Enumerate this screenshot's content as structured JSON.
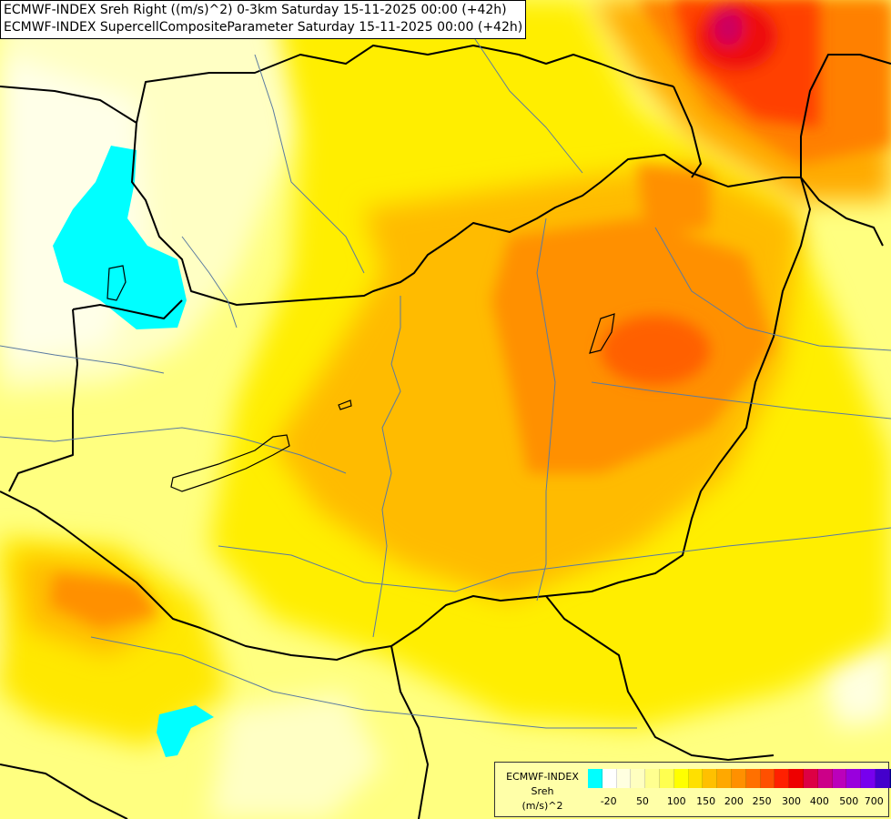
{
  "header": {
    "line1": "ECMWF-INDEX Sreh Right ((m/s)^2) 0-3km Saturday 15-11-2025 00:00 (+42h)",
    "line2": "ECMWF-INDEX SupercellCompositeParameter Saturday 15-11-2025 00:00 (+42h)"
  },
  "legend": {
    "model": "ECMWF-INDEX",
    "variable": "Sreh",
    "unit": "(m/s)^2",
    "colors": [
      "#00ffff",
      "#ffffff",
      "#ffffe0",
      "#ffffc0",
      "#ffff90",
      "#ffff50",
      "#ffff00",
      "#ffe000",
      "#ffc000",
      "#ffa800",
      "#ff9000",
      "#ff7000",
      "#ff5000",
      "#ff2000",
      "#ee0000",
      "#dd0044",
      "#cc0088",
      "#bb00bb",
      "#9900dd",
      "#7700ee",
      "#4400cc",
      "#000088"
    ],
    "ticks": [
      {
        "label": "-20",
        "pos": 0.07
      },
      {
        "label": "50",
        "pos": 0.185
      },
      {
        "label": "100",
        "pos": 0.3
      },
      {
        "label": "150",
        "pos": 0.4
      },
      {
        "label": "200",
        "pos": 0.495
      },
      {
        "label": "250",
        "pos": 0.59
      },
      {
        "label": "300",
        "pos": 0.69
      },
      {
        "label": "400",
        "pos": 0.785
      },
      {
        "label": "500",
        "pos": 0.885
      },
      {
        "label": "700",
        "pos": 0.97
      }
    ]
  }
}
